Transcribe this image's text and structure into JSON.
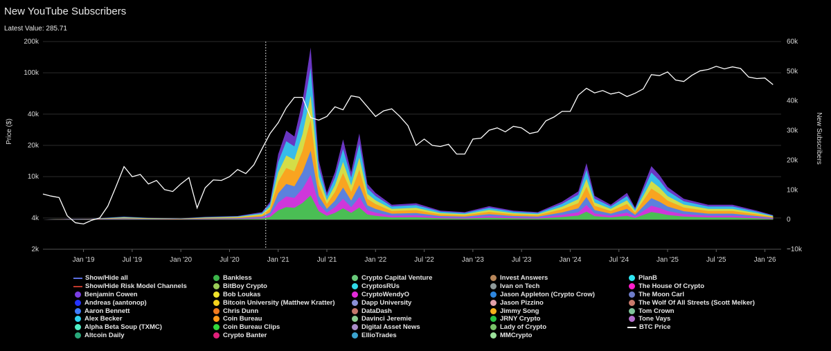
{
  "header": {
    "title": "New YouTube Subscribers",
    "latest_value": "Latest Value: 285.71"
  },
  "chart_data": {
    "type": "area",
    "title": "New YouTube Subscribers",
    "ylabel_left": "Price ($)",
    "ylabel_right": "New Subscribers",
    "left_axis": {
      "scale": "log",
      "ticks": [
        2000,
        4000,
        10000,
        20000,
        40000,
        100000,
        200000
      ],
      "tick_labels": [
        "2k",
        "4k",
        "10k",
        "20k",
        "40k",
        "100k",
        "200k"
      ]
    },
    "right_axis": {
      "ticks": [
        -10000,
        0,
        10000,
        20000,
        30000,
        40000,
        50000,
        60000
      ],
      "tick_labels": [
        "−10k",
        "0",
        "10k",
        "20k",
        "30k",
        "40k",
        "50k",
        "60k"
      ]
    },
    "x_ticks": [
      {
        "date": "2019-01",
        "label": "Jan '19"
      },
      {
        "date": "2019-07",
        "label": "Jul '19"
      },
      {
        "date": "2020-01",
        "label": "Jan '20"
      },
      {
        "date": "2020-07",
        "label": "Jul '20"
      },
      {
        "date": "2021-01",
        "label": "Jan '21"
      },
      {
        "date": "2021-07",
        "label": "Jul '21"
      },
      {
        "date": "2022-01",
        "label": "Jan '22"
      },
      {
        "date": "2022-07",
        "label": "Jul '22"
      },
      {
        "date": "2023-01",
        "label": "Jan '23"
      },
      {
        "date": "2023-07",
        "label": "Jul '23"
      },
      {
        "date": "2024-01",
        "label": "Jan '24"
      },
      {
        "date": "2024-07",
        "label": "Jul '24"
      },
      {
        "date": "2025-01",
        "label": "Jan '25"
      },
      {
        "date": "2025-07",
        "label": "Jul '25"
      },
      {
        "date": "2026-01",
        "label": "Jan '26"
      }
    ],
    "btc_price": [
      [
        "2018-08",
        6800
      ],
      [
        "2018-09",
        6500
      ],
      [
        "2018-10",
        6300
      ],
      [
        "2018-11",
        4200
      ],
      [
        "2018-12",
        3600
      ],
      [
        "2019-01",
        3500
      ],
      [
        "2019-02",
        3800
      ],
      [
        "2019-03",
        4000
      ],
      [
        "2019-04",
        5200
      ],
      [
        "2019-05",
        8000
      ],
      [
        "2019-06",
        12500
      ],
      [
        "2019-07",
        10000
      ],
      [
        "2019-08",
        10500
      ],
      [
        "2019-09",
        8500
      ],
      [
        "2019-10",
        9200
      ],
      [
        "2019-11",
        7500
      ],
      [
        "2019-12",
        7200
      ],
      [
        "2020-01",
        8500
      ],
      [
        "2020-02",
        9800
      ],
      [
        "2020-03",
        5000
      ],
      [
        "2020-04",
        7800
      ],
      [
        "2020-05",
        9300
      ],
      [
        "2020-06",
        9200
      ],
      [
        "2020-07",
        10000
      ],
      [
        "2020-08",
        11700
      ],
      [
        "2020-09",
        10700
      ],
      [
        "2020-10",
        13000
      ],
      [
        "2020-11",
        18500
      ],
      [
        "2020-12",
        26000
      ],
      [
        "2021-01",
        33000
      ],
      [
        "2021-02",
        46000
      ],
      [
        "2021-03",
        58000
      ],
      [
        "2021-04",
        58000
      ],
      [
        "2021-05",
        37000
      ],
      [
        "2021-06",
        35000
      ],
      [
        "2021-07",
        38000
      ],
      [
        "2021-08",
        47000
      ],
      [
        "2021-09",
        44000
      ],
      [
        "2021-10",
        60000
      ],
      [
        "2021-11",
        58000
      ],
      [
        "2021-12",
        47000
      ],
      [
        "2022-01",
        38000
      ],
      [
        "2022-02",
        43000
      ],
      [
        "2022-03",
        45000
      ],
      [
        "2022-04",
        38000
      ],
      [
        "2022-05",
        31000
      ],
      [
        "2022-06",
        20000
      ],
      [
        "2022-07",
        23000
      ],
      [
        "2022-08",
        20000
      ],
      [
        "2022-09",
        19500
      ],
      [
        "2022-10",
        20500
      ],
      [
        "2022-11",
        16500
      ],
      [
        "2022-12",
        16500
      ],
      [
        "2023-01",
        23000
      ],
      [
        "2023-02",
        23500
      ],
      [
        "2023-03",
        28000
      ],
      [
        "2023-04",
        29500
      ],
      [
        "2023-05",
        27000
      ],
      [
        "2023-06",
        30500
      ],
      [
        "2023-07",
        29500
      ],
      [
        "2023-08",
        26000
      ],
      [
        "2023-09",
        27000
      ],
      [
        "2023-10",
        34500
      ],
      [
        "2023-11",
        37500
      ],
      [
        "2023-12",
        42500
      ],
      [
        "2024-01",
        42500
      ],
      [
        "2024-02",
        61000
      ],
      [
        "2024-03",
        71000
      ],
      [
        "2024-04",
        64000
      ],
      [
        "2024-05",
        67500
      ],
      [
        "2024-06",
        62500
      ],
      [
        "2024-07",
        65000
      ],
      [
        "2024-08",
        59000
      ],
      [
        "2024-09",
        63500
      ],
      [
        "2024-10",
        70000
      ],
      [
        "2024-11",
        96000
      ],
      [
        "2024-12",
        94000
      ],
      [
        "2025-01",
        102000
      ],
      [
        "2025-02",
        85000
      ],
      [
        "2025-03",
        82500
      ],
      [
        "2025-04",
        94500
      ],
      [
        "2025-05",
        104500
      ],
      [
        "2025-06",
        107500
      ],
      [
        "2025-07",
        115500
      ],
      [
        "2025-08",
        109000
      ],
      [
        "2025-09",
        114000
      ],
      [
        "2025-10",
        110000
      ],
      [
        "2025-11",
        91000
      ],
      [
        "2025-12",
        88000
      ],
      [
        "2026-01",
        89000
      ],
      [
        "2026-02",
        77000
      ]
    ],
    "new_subscribers_total": [
      [
        "2018-08",
        0
      ],
      [
        "2018-11",
        200
      ],
      [
        "2019-02",
        300
      ],
      [
        "2019-06",
        1000
      ],
      [
        "2019-09",
        600
      ],
      [
        "2020-01",
        400
      ],
      [
        "2020-04",
        900
      ],
      [
        "2020-08",
        1200
      ],
      [
        "2020-11",
        2500
      ],
      [
        "2020-12",
        6000
      ],
      [
        "2021-01",
        22000
      ],
      [
        "2021-02",
        30000
      ],
      [
        "2021-03",
        28000
      ],
      [
        "2021-04",
        40000
      ],
      [
        "2021-05",
        58000
      ],
      [
        "2021-06",
        20000
      ],
      [
        "2021-07",
        9000
      ],
      [
        "2021-08",
        16000
      ],
      [
        "2021-09",
        27000
      ],
      [
        "2021-10",
        16000
      ],
      [
        "2021-11",
        29000
      ],
      [
        "2021-12",
        12000
      ],
      [
        "2022-01",
        9000
      ],
      [
        "2022-03",
        5000
      ],
      [
        "2022-06",
        5500
      ],
      [
        "2022-09",
        3000
      ],
      [
        "2022-12",
        2500
      ],
      [
        "2023-03",
        4500
      ],
      [
        "2023-06",
        3000
      ],
      [
        "2023-09",
        2500
      ],
      [
        "2023-12",
        6000
      ],
      [
        "2024-02",
        9500
      ],
      [
        "2024-03",
        19000
      ],
      [
        "2024-04",
        8000
      ],
      [
        "2024-06",
        5000
      ],
      [
        "2024-08",
        9000
      ],
      [
        "2024-09",
        4000
      ],
      [
        "2024-11",
        18000
      ],
      [
        "2024-12",
        15000
      ],
      [
        "2025-01",
        11000
      ],
      [
        "2025-03",
        7000
      ],
      [
        "2025-06",
        5000
      ],
      [
        "2025-09",
        5000
      ],
      [
        "2025-12",
        3000
      ],
      [
        "2026-02",
        1500
      ]
    ],
    "annotations": [
      {
        "date": "2020-11-15",
        "type": "vertical-dashed-line"
      }
    ],
    "legend_position": "bottom",
    "series": [
      {
        "name": "Show/Hide all",
        "color": "#5b6ee1",
        "marker": "line"
      },
      {
        "name": "Show/Hide Risk Model Channels",
        "color": "#c0392b",
        "marker": "line"
      },
      {
        "name": "Benjamin Cowen",
        "color": "#7b3fe4"
      },
      {
        "name": "Andreas (aantonop)",
        "color": "#2433ff"
      },
      {
        "name": "Aaron Bennett",
        "color": "#3f7bff"
      },
      {
        "name": "Alex Becker",
        "color": "#2fd3f0"
      },
      {
        "name": "Alpha Beta Soup (TXMC)",
        "color": "#4ff0c6"
      },
      {
        "name": "Altcoin Daily",
        "color": "#28a87a"
      },
      {
        "name": "Bankless",
        "color": "#3cb54a"
      },
      {
        "name": "BitBoy Crypto",
        "color": "#9acd57"
      },
      {
        "name": "Bob Loukas",
        "color": "#f0e32a"
      },
      {
        "name": "Bitcoin University (Matthew Kratter)",
        "color": "#f2d11c"
      },
      {
        "name": "Chris Dunn",
        "color": "#f07a1e"
      },
      {
        "name": "Coin Bureau",
        "color": "#ff9a1a"
      },
      {
        "name": "Coin Bureau Clips",
        "color": "#32d63c"
      },
      {
        "name": "Crypto Banter",
        "color": "#e0207a"
      },
      {
        "name": "Crypto Capital Venture",
        "color": "#69c97a"
      },
      {
        "name": "CryptosRUs",
        "color": "#2fd9e8"
      },
      {
        "name": "CryptoWendyO",
        "color": "#e42ad9"
      },
      {
        "name": "Dapp University",
        "color": "#8a8fd6"
      },
      {
        "name": "DataDash",
        "color": "#c4766b"
      },
      {
        "name": "Davinci Jeremie",
        "color": "#8ac98f"
      },
      {
        "name": "Digital Asset News",
        "color": "#a98cc9"
      },
      {
        "name": "EllioTrades",
        "color": "#3ba3cf"
      },
      {
        "name": "Invest Answers",
        "color": "#b9875a"
      },
      {
        "name": "Ivan on Tech",
        "color": "#8f9a9a"
      },
      {
        "name": "Jason Appleton (Crypto Crow)",
        "color": "#2e86de"
      },
      {
        "name": "Jason Pizzino",
        "color": "#e3a0a8"
      },
      {
        "name": "Jimmy Song",
        "color": "#f5b01c"
      },
      {
        "name": "JRNY Crypto",
        "color": "#29c444"
      },
      {
        "name": "Lady of Crypto",
        "color": "#7ac36a"
      },
      {
        "name": "MMCrypto",
        "color": "#9be29b"
      },
      {
        "name": "PlanB",
        "color": "#2fe6f2"
      },
      {
        "name": "The House Of Crypto",
        "color": "#ff1ecb"
      },
      {
        "name": "The Moon Carl",
        "color": "#6e7cc9"
      },
      {
        "name": "The Wolf Of All Streets (Scott Melker)",
        "color": "#c97a6b"
      },
      {
        "name": "Tom Crown",
        "color": "#7fc49a"
      },
      {
        "name": "Tone Vays",
        "color": "#b46fcc"
      },
      {
        "name": "BTC Price",
        "color": "#ffffff",
        "marker": "line"
      }
    ]
  }
}
